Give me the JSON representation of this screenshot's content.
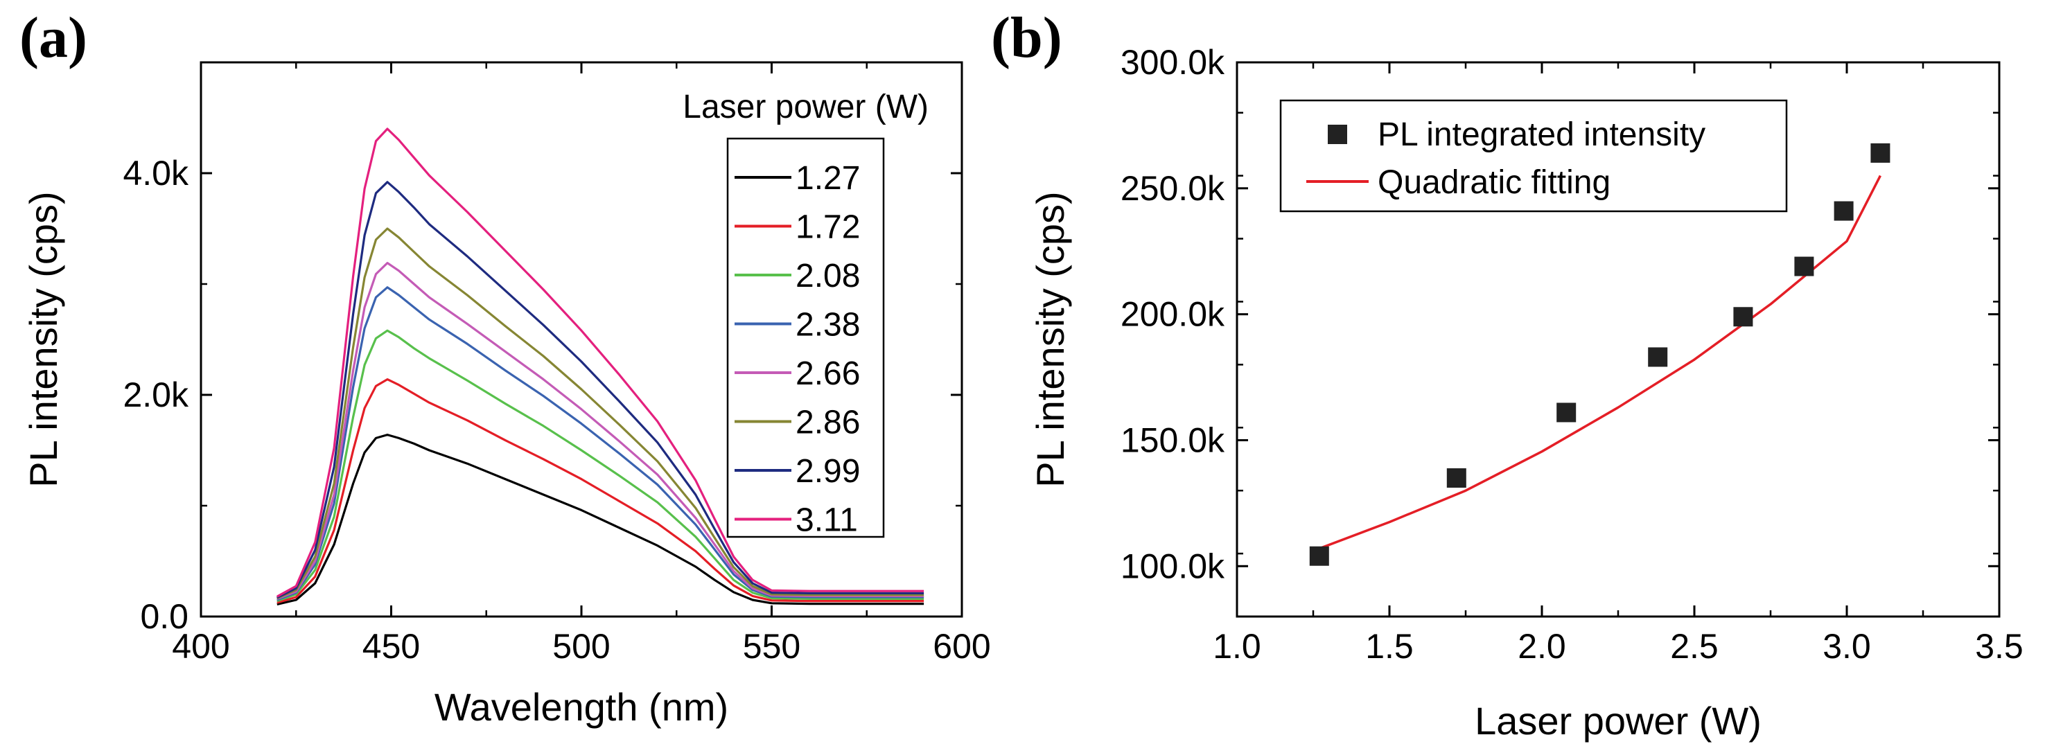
{
  "chart_data": [
    {
      "panel": "(a)",
      "type": "line",
      "xlabel": "Wavelength (nm)",
      "ylabel": "PL intensity (cps)",
      "xlim": [
        400,
        600
      ],
      "ylim": [
        0,
        5000
      ],
      "x_ticks": [
        400,
        450,
        500,
        550,
        600
      ],
      "x_tick_labels": [
        "400",
        "450",
        "500",
        "550",
        "600"
      ],
      "y_ticks": [
        0,
        2000,
        4000
      ],
      "y_tick_labels": [
        "0.0",
        "2.0k",
        "4.0k"
      ],
      "legend_title": "Laser power (W)",
      "legend_position": "top-right",
      "grid": false,
      "x": [
        420,
        425,
        430,
        435,
        440,
        443,
        446,
        449,
        452,
        456,
        460,
        470,
        480,
        490,
        500,
        510,
        520,
        530,
        535,
        540,
        545,
        550,
        560,
        570,
        580,
        590
      ],
      "series": [
        {
          "name": "1.27",
          "color": "#000000",
          "values": [
            110,
            150,
            300,
            650,
            1200,
            1480,
            1610,
            1640,
            1610,
            1560,
            1500,
            1380,
            1240,
            1100,
            960,
            800,
            640,
            450,
            330,
            220,
            150,
            120,
            115,
            115,
            115,
            115
          ]
        },
        {
          "name": "1.72",
          "color": "#e41e26",
          "values": [
            125,
            175,
            360,
            780,
            1500,
            1880,
            2080,
            2140,
            2090,
            2010,
            1930,
            1770,
            1590,
            1420,
            1240,
            1040,
            840,
            590,
            430,
            280,
            185,
            145,
            140,
            140,
            140,
            140
          ]
        },
        {
          "name": "2.08",
          "color": "#58c04c",
          "values": [
            140,
            200,
            420,
            900,
            1800,
            2270,
            2510,
            2580,
            2520,
            2420,
            2330,
            2130,
            1920,
            1720,
            1500,
            1270,
            1030,
            720,
            525,
            330,
            215,
            165,
            160,
            160,
            160,
            160
          ]
        },
        {
          "name": "2.38",
          "color": "#3a63b0",
          "values": [
            150,
            215,
            470,
            1020,
            2070,
            2600,
            2880,
            2970,
            2900,
            2790,
            2680,
            2460,
            2220,
            1990,
            1740,
            1470,
            1190,
            830,
            605,
            380,
            240,
            180,
            175,
            175,
            175,
            175
          ]
        },
        {
          "name": "2.66",
          "color": "#c45bb6",
          "values": [
            160,
            225,
            500,
            1100,
            2220,
            2790,
            3090,
            3190,
            3120,
            3000,
            2880,
            2640,
            2390,
            2140,
            1870,
            1580,
            1280,
            890,
            650,
            410,
            255,
            190,
            185,
            185,
            185,
            185
          ]
        },
        {
          "name": "2.86",
          "color": "#868633",
          "values": [
            165,
            240,
            540,
            1200,
            2430,
            3060,
            3400,
            3500,
            3420,
            3290,
            3160,
            2900,
            2620,
            2350,
            2050,
            1730,
            1400,
            980,
            710,
            445,
            275,
            200,
            195,
            195,
            195,
            195
          ]
        },
        {
          "name": "2.99",
          "color": "#1e2b80",
          "values": [
            170,
            255,
            600,
            1350,
            2730,
            3440,
            3820,
            3920,
            3830,
            3690,
            3540,
            3250,
            2940,
            2630,
            2300,
            1940,
            1570,
            1100,
            790,
            490,
            300,
            215,
            210,
            210,
            210,
            210
          ]
        },
        {
          "name": "3.11",
          "color": "#e4207e",
          "values": [
            180,
            275,
            670,
            1520,
            3070,
            3860,
            4290,
            4400,
            4300,
            4140,
            3980,
            3650,
            3300,
            2950,
            2580,
            2180,
            1760,
            1230,
            880,
            540,
            330,
            235,
            230,
            230,
            230,
            230
          ]
        }
      ]
    },
    {
      "panel": "(b)",
      "type": "scatter",
      "xlabel": "Laser power (W)",
      "ylabel": "PL intensity (cps)",
      "xlim": [
        1.0,
        3.5
      ],
      "ylim": [
        80000,
        300000
      ],
      "x_ticks": [
        1.0,
        1.5,
        2.0,
        2.5,
        3.0,
        3.5
      ],
      "x_tick_labels": [
        "1.0",
        "1.5",
        "2.0",
        "2.5",
        "3.0",
        "3.5"
      ],
      "y_ticks": [
        100000,
        150000,
        200000,
        250000,
        300000
      ],
      "y_tick_labels": [
        "100.0k",
        "150.0k",
        "200.0k",
        "250.0k",
        "300.0k"
      ],
      "legend_position": "top-left",
      "grid": false,
      "series": [
        {
          "name": "PL integrated intensity",
          "marker": "square",
          "color": "#222222",
          "x": [
            1.27,
            1.72,
            2.08,
            2.38,
            2.66,
            2.86,
            2.99,
            3.11
          ],
          "values": [
            104000,
            135000,
            161000,
            183000,
            199000,
            219000,
            241000,
            264000
          ]
        },
        {
          "name": "Quadratic fitting",
          "marker": "line",
          "color": "#e41e26",
          "x": [
            1.27,
            1.5,
            1.75,
            2.0,
            2.25,
            2.5,
            2.75,
            3.0,
            3.11
          ],
          "values": [
            107000,
            117500,
            130000,
            145500,
            163000,
            182000,
            204000,
            229000,
            255000
          ]
        }
      ]
    }
  ]
}
